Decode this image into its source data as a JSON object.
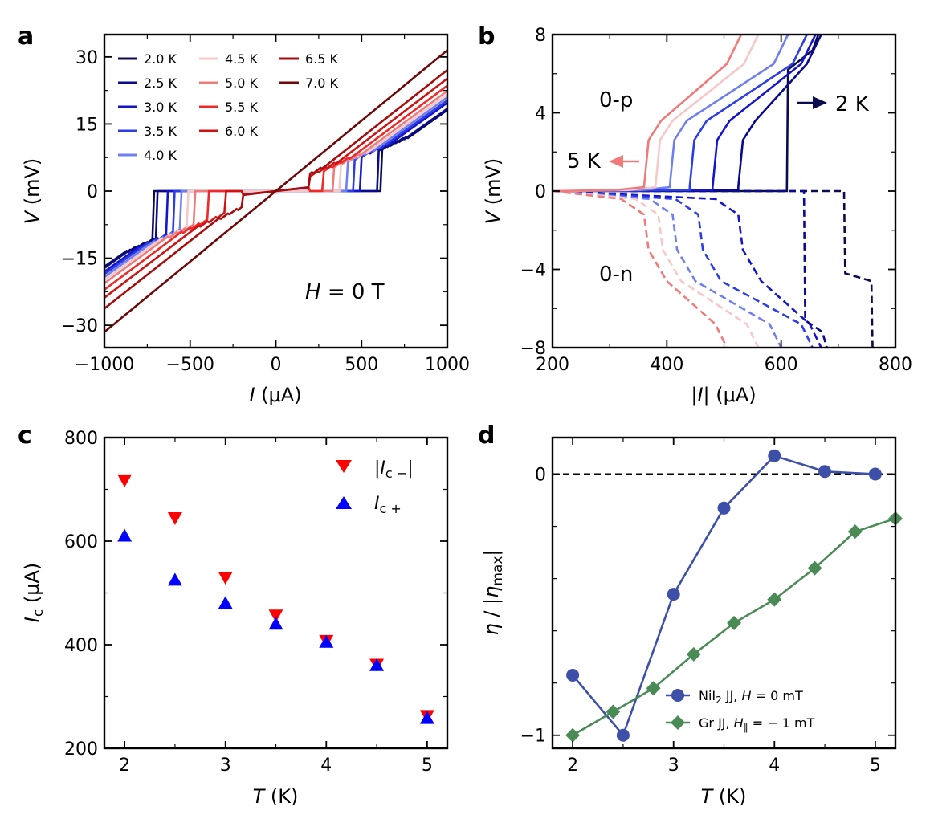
{
  "chart_data": [
    {
      "panel": "a",
      "type": "line",
      "xlabel": "I (μA)",
      "ylabel": "V (mV)",
      "xlim": [
        -1000,
        1000
      ],
      "ylim": [
        -35,
        35
      ],
      "xticks": [
        -1000,
        -500,
        0,
        500,
        1000
      ],
      "yticks": [
        -30,
        -15,
        0,
        15,
        30
      ],
      "annotation": "H = 0 T",
      "legend": {
        "position": "upper-left",
        "ncols": 3
      },
      "series": [
        {
          "name": "2.0 K",
          "color": "#0b0b50",
          "ic_pos": 620,
          "ic_neg": -720,
          "slope": 0.0272
        },
        {
          "name": "2.5 K",
          "color": "#0a0a8c",
          "ic_pos": 600,
          "ic_neg": -700,
          "slope": 0.0273
        },
        {
          "name": "3.0 K",
          "color": "#1515cc",
          "ic_pos": 500,
          "ic_neg": -640,
          "slope": 0.0274
        },
        {
          "name": "3.5 K",
          "color": "#2a3de8",
          "ic_pos": 460,
          "ic_neg": -600,
          "slope": 0.0275
        },
        {
          "name": "4.0 K",
          "color": "#6f7ff0",
          "ic_pos": 420,
          "ic_neg": -560,
          "slope": 0.0277
        },
        {
          "name": "4.5 K",
          "color": "#f8c8c8",
          "ic_pos": 380,
          "ic_neg": -520,
          "slope": 0.0279
        },
        {
          "name": "5.0 K",
          "color": "#f07a7a",
          "ic_pos": 340,
          "ic_neg": -480,
          "slope": 0.0282
        },
        {
          "name": "5.5 K",
          "color": "#f02828",
          "ic_pos": 280,
          "ic_neg": -400,
          "slope": 0.0287
        },
        {
          "name": "6.0 K",
          "color": "#d01212",
          "ic_pos": 200,
          "ic_neg": -300,
          "slope": 0.0293
        },
        {
          "name": "6.5 K",
          "color": "#a80b0b",
          "ic_pos": 120,
          "ic_neg": -180,
          "slope": 0.0302
        },
        {
          "name": "7.0 K",
          "color": "#6e0707",
          "ic_pos": 0,
          "ic_neg": 0,
          "slope": 0.0315
        }
      ]
    },
    {
      "panel": "b",
      "type": "line",
      "xlabel": "|I| (μA)",
      "ylabel": "V (mV)",
      "xlim": [
        200,
        800
      ],
      "ylim": [
        -8,
        8
      ],
      "xticks": [
        200,
        400,
        600,
        800
      ],
      "yticks": [
        -8,
        -4,
        0,
        4,
        8
      ],
      "annotations": [
        "0-p",
        "0-n",
        "2 K",
        "5 K"
      ],
      "series": [
        {
          "name": "2.0 K",
          "color": "#0b0b50",
          "ic_pos": 610,
          "ic_neg": 710,
          "end_pos": 665,
          "end_neg": 760
        },
        {
          "name": "2.5 K",
          "color": "#0a0a8c",
          "ic_pos": 525,
          "ic_neg": 640,
          "end_pos": 670,
          "end_neg": 680
        },
        {
          "name": "3.0 K",
          "color": "#1515cc",
          "ic_pos": 480,
          "ic_neg": 525,
          "end_pos": 660,
          "end_neg": 670
        },
        {
          "name": "3.5 K",
          "color": "#2a3de8",
          "ic_pos": 440,
          "ic_neg": 455,
          "end_pos": 645,
          "end_neg": 655
        },
        {
          "name": "4.0 K",
          "color": "#6f7ff0",
          "ic_pos": 405,
          "ic_neg": 410,
          "end_pos": 612,
          "end_neg": 600
        },
        {
          "name": "4.5 K",
          "color": "#f8c8c8",
          "ic_pos": 380,
          "ic_neg": 385,
          "end_pos": 560,
          "end_neg": 560
        },
        {
          "name": "5.0 K",
          "color": "#f07a7a",
          "ic_pos": 360,
          "ic_neg": 360,
          "end_pos": 530,
          "end_neg": 505
        }
      ]
    },
    {
      "panel": "c",
      "type": "scatter",
      "xlabel": "T (K)",
      "ylabel": "I_c (μA)",
      "xlim": [
        1.8,
        5.2
      ],
      "ylim": [
        200,
        800
      ],
      "xticks": [
        2,
        3,
        4,
        5
      ],
      "yticks": [
        200,
        400,
        600,
        800
      ],
      "legend": {
        "position": "upper-right"
      },
      "series": [
        {
          "name": "|I_c-|",
          "color": "#ff0000",
          "marker": "triangle-down",
          "x": [
            2,
            2.5,
            3,
            3.5,
            4,
            4.5,
            5
          ],
          "y": [
            718,
            645,
            530,
            457,
            408,
            362,
            263
          ]
        },
        {
          "name": "I_c+",
          "color": "#0000ff",
          "marker": "triangle-up",
          "x": [
            2,
            2.5,
            3,
            3.5,
            4,
            4.5,
            5
          ],
          "y": [
            610,
            525,
            480,
            440,
            405,
            360,
            258
          ]
        }
      ]
    },
    {
      "panel": "d",
      "type": "line",
      "xlabel": "T (K)",
      "ylabel": "η / |ηmax|",
      "xlim": [
        1.8,
        5.2
      ],
      "ylim": [
        -1.05,
        0.14
      ],
      "xticks": [
        2,
        3,
        4,
        5
      ],
      "yticks": [
        -1,
        0
      ],
      "reference_line": 0,
      "legend": {
        "position": "lower-right"
      },
      "series": [
        {
          "name": "NiI2 JJ, H = 0 mT",
          "color": "#3d4fa8",
          "marker": "circle",
          "x": [
            2,
            2.5,
            3,
            3.5,
            4,
            4.5,
            5
          ],
          "y": [
            -0.77,
            -1.0,
            -0.46,
            -0.13,
            0.07,
            0.01,
            0.0
          ]
        },
        {
          "name": "Gr JJ, H∥ = −1 mT",
          "color": "#4a8a55",
          "marker": "diamond",
          "x": [
            2,
            2.4,
            2.8,
            3.2,
            3.6,
            4,
            4.4,
            4.8,
            5.2
          ],
          "y": [
            -1.0,
            -0.91,
            -0.82,
            -0.69,
            -0.57,
            -0.48,
            -0.36,
            -0.22,
            -0.17
          ]
        }
      ]
    }
  ],
  "labels": {
    "panel_a": "a",
    "panel_b": "b",
    "panel_c": "c",
    "panel_d": "d",
    "a_field_var": "H",
    "a_field_rest": " = 0 T",
    "b_p": "0-p",
    "b_n": "0-n",
    "b_2k": "2 K",
    "b_5k": "5 K",
    "I": "I",
    "uA": " (μA)",
    "V": "V",
    "mV": " (mV)",
    "T": "T",
    "K": " (K)",
    "abs_bar": "|",
    "Ic_main": "I",
    "Ic_sub": "c",
    "c_leg1_main": "I",
    "c_leg1_sub": "c −",
    "c_leg2_main": "I",
    "c_leg2_sub": "c +",
    "eta": "η",
    "eta_mid": " / |",
    "eta_sub": "max",
    "eta_end": "|",
    "d_leg1_a": "NiI",
    "d_leg1_b": "2",
    "d_leg1_c": " JJ, ",
    "d_leg1_d": "H",
    "d_leg1_e": " = 0 mT",
    "d_leg2_a": "Gr JJ, ",
    "d_leg2_b": "H",
    "d_leg2_c": "∥",
    "d_leg2_d": " = − 1 mT"
  }
}
